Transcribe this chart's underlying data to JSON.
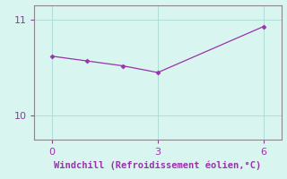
{
  "x": [
    0,
    1,
    2,
    3,
    6
  ],
  "y": [
    10.62,
    10.57,
    10.52,
    10.45,
    10.93
  ],
  "line_color": "#9933aa",
  "marker_color": "#9933aa",
  "bg_color": "#d8f5f0",
  "xlabel": "Windchill (Refroidissement éolien,°C)",
  "xlabel_color": "#9933aa",
  "xlim": [
    -0.5,
    6.5
  ],
  "ylim": [
    9.75,
    11.15
  ],
  "yticks": [
    10,
    11
  ],
  "xticks": [
    0,
    3,
    6
  ],
  "grid_color": "#b0ddd8",
  "tick_color": "#9933aa",
  "spine_color": "#888888",
  "xlabel_fontsize": 7.5,
  "tick_fontsize": 8
}
